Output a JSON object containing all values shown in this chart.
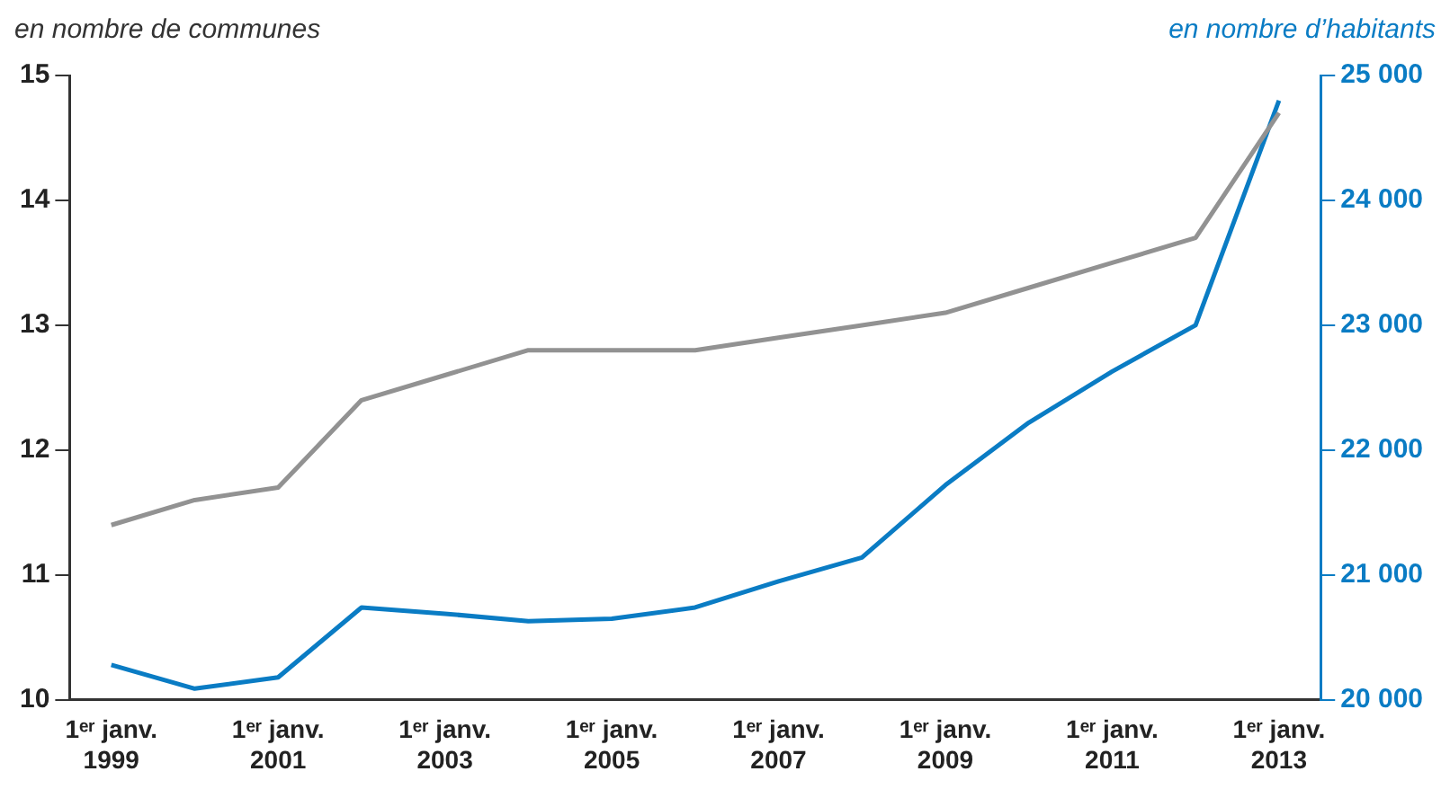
{
  "chart_data": {
    "type": "line",
    "ylabel": "en nombre de communes",
    "y2label": "en nombre d’habitants",
    "categories": [
      "1ᵉʳ janv. 1999",
      null,
      "1ᵉʳ janv. 2001",
      null,
      "1ᵉʳ janv. 2003",
      null,
      "1ᵉʳ janv. 2005",
      null,
      "1ᵉʳ janv. 2007",
      null,
      "1ᵉʳ janv. 2009",
      null,
      "1ᵉʳ janv. 2011",
      null,
      "1ᵉʳ janv. 2013"
    ],
    "series": [
      {
        "color": "#929292",
        "values": [
          11.4,
          11.6,
          11.7,
          12.4,
          12.6,
          12.8,
          12.8,
          12.8,
          12.9,
          13.0,
          13.1,
          13.3,
          13.5,
          13.7,
          14.7
        ]
      },
      {
        "color": "#0a7cc4",
        "axis": "y2",
        "values": [
          20280,
          20090,
          20180,
          20740,
          20690,
          20630,
          20650,
          20740,
          20950,
          21140,
          21720,
          22220,
          22630,
          23000,
          24800
        ]
      }
    ],
    "ylim": [
      10,
      15
    ],
    "yticks": [
      10,
      11,
      12,
      13,
      14,
      15
    ],
    "y2lim": [
      20000,
      25000
    ],
    "y2ticks": [
      {
        "value": 20000,
        "label": "20 000"
      },
      {
        "value": 21000,
        "label": "21 000"
      },
      {
        "value": 22000,
        "label": "22 000"
      },
      {
        "value": 23000,
        "label": "23 000"
      },
      {
        "value": 24000,
        "label": "24 000"
      },
      {
        "value": 25000,
        "label": "25 000"
      }
    ],
    "grid": false,
    "legend": false,
    "marker": "none",
    "line_style": "solid"
  }
}
